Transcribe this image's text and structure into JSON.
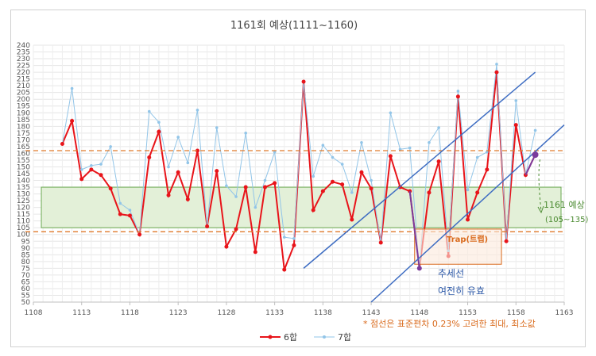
{
  "chart_data": {
    "type": "line",
    "title": "1161회 예상(1111~1160)",
    "xlabel": "",
    "ylabel": "",
    "xlim": [
      1108,
      1163
    ],
    "ylim": [
      50,
      240
    ],
    "x_ticks": [
      1108,
      1113,
      1118,
      1123,
      1128,
      1133,
      1138,
      1143,
      1148,
      1153,
      1158,
      1163
    ],
    "y_ticks": [
      50,
      55,
      60,
      65,
      70,
      75,
      80,
      85,
      90,
      95,
      100,
      105,
      110,
      115,
      120,
      125,
      130,
      135,
      140,
      145,
      150,
      155,
      160,
      165,
      170,
      175,
      180,
      185,
      190,
      195,
      200,
      205,
      210,
      215,
      220,
      225,
      230,
      235,
      240
    ],
    "grid": true,
    "legend_position": "bottom",
    "x": [
      1111,
      1112,
      1113,
      1114,
      1115,
      1116,
      1117,
      1118,
      1119,
      1120,
      1121,
      1122,
      1123,
      1124,
      1125,
      1126,
      1127,
      1128,
      1129,
      1130,
      1131,
      1132,
      1133,
      1134,
      1135,
      1136,
      1137,
      1138,
      1139,
      1140,
      1141,
      1142,
      1143,
      1144,
      1145,
      1146,
      1147,
      1148,
      1149,
      1150,
      1151,
      1152,
      1153,
      1154,
      1155,
      1156,
      1157,
      1158,
      1159,
      1160
    ],
    "series": [
      {
        "name": "6합",
        "color": "#e8141a",
        "values": [
          167,
          184,
          141,
          148,
          144,
          134,
          115,
          114,
          100,
          157,
          176,
          129,
          146,
          126,
          162,
          106,
          147,
          91,
          104,
          135,
          87,
          135,
          138,
          74,
          92,
          213,
          118,
          132,
          139,
          137,
          111,
          146,
          134,
          94,
          158,
          135,
          132,
          75,
          131,
          154,
          84,
          202,
          111,
          131,
          148,
          220,
          95,
          181,
          144,
          159
        ]
      },
      {
        "name": "7합",
        "color": "#92c5e8",
        "values": [
          167,
          208,
          148,
          151,
          152,
          165,
          123,
          118,
          100,
          191,
          183,
          150,
          172,
          153,
          192,
          106,
          179,
          136,
          128,
          175,
          120,
          140,
          161,
          98,
          97,
          213,
          143,
          166,
          157,
          152,
          131,
          168,
          140,
          94,
          190,
          163,
          164,
          75,
          168,
          179,
          88,
          206,
          133,
          157,
          161,
          226,
          95,
          199,
          144,
          177
        ]
      }
    ],
    "band": {
      "label": "1161 예상",
      "range_label": "(105~135)",
      "low": 105,
      "high": 135,
      "color": "#e3f0d8"
    },
    "dashed_lines": {
      "upper": 162,
      "lower": 102,
      "color": "#e07a2b"
    },
    "trendlines": [
      {
        "x1": 1136,
        "y1": 75,
        "x2": 1160,
        "y2": 220
      },
      {
        "x1": 1143,
        "y1": 50,
        "x2": 1163,
        "y2": 181
      }
    ],
    "trap_box": {
      "label": "Trap(트랩)",
      "x1": 1147.5,
      "x2": 1156.5,
      "y1": 104,
      "y2": 78
    },
    "prediction_point": {
      "x": 1160,
      "y": 159,
      "color": "#7b3b9c"
    },
    "purple_segment": {
      "x1": 1147,
      "y1": 132,
      "x2": 1148,
      "y2": 75
    },
    "annotations": {
      "trend_label_1": "추세선",
      "trend_label_2": "여전히 유효",
      "footnote": "* 점선은 표준편차 0.23% 고려한 최대, 최소값"
    }
  }
}
